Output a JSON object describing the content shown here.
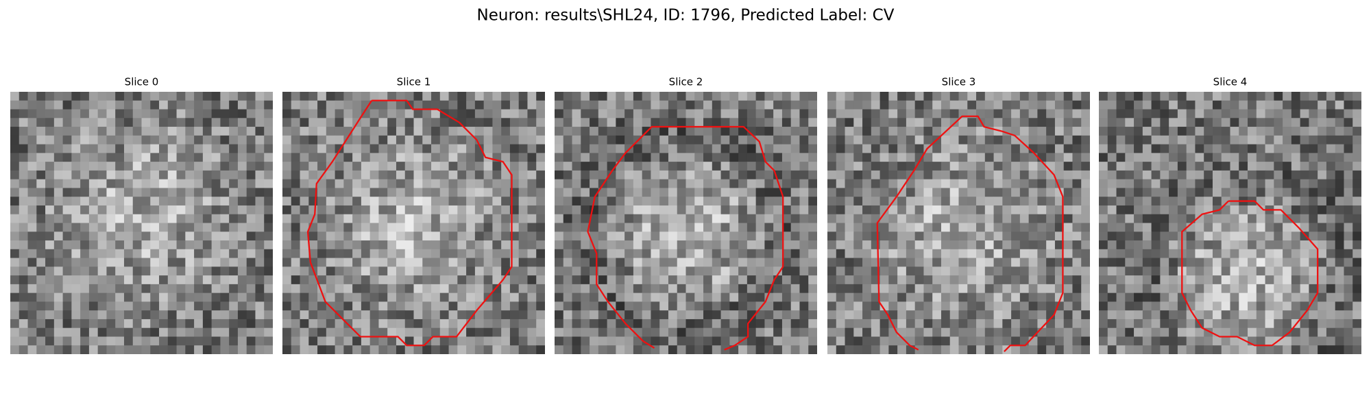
{
  "title": "Neuron: results\\SHL24, ID: 1796, Predicted Label: CV",
  "panels": [
    {
      "title": "Slice 0"
    },
    {
      "title": "Slice 1"
    },
    {
      "title": "Slice 2"
    },
    {
      "title": "Slice 3"
    },
    {
      "title": "Slice 4"
    }
  ]
}
